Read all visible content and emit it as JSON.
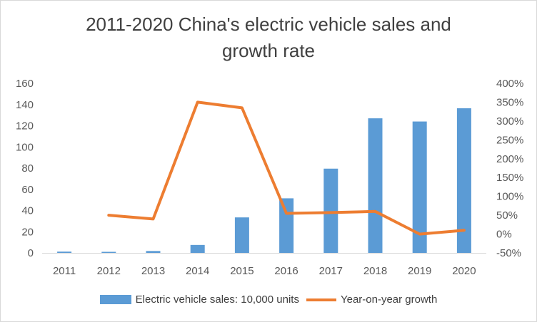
{
  "chart_data": {
    "type": "bar",
    "title_lines": [
      "2011-2020 China's electric vehicle sales and",
      "growth rate"
    ],
    "categories": [
      "2011",
      "2012",
      "2013",
      "2014",
      "2015",
      "2016",
      "2017",
      "2018",
      "2019",
      "2020"
    ],
    "series": [
      {
        "name": "Electric vehicle sales: 10,000 units",
        "type": "bar",
        "axis": "left",
        "color": "#5b9bd5",
        "values": [
          1.2,
          1.0,
          1.8,
          7.5,
          33.5,
          51.5,
          79.5,
          127,
          124,
          136.5
        ]
      },
      {
        "name": "Year-on-year growth",
        "type": "line",
        "axis": "right",
        "color": "#ed7d31",
        "values": [
          null,
          0.5,
          0.4,
          3.5,
          3.35,
          0.55,
          0.57,
          0.6,
          0.0,
          0.1
        ]
      }
    ],
    "y_left": {
      "min": 0,
      "max": 160,
      "step": 20,
      "tick_labels": [
        "0",
        "20",
        "40",
        "60",
        "80",
        "100",
        "120",
        "140",
        "160"
      ]
    },
    "y_right": {
      "min": -0.5,
      "max": 4.0,
      "step": 0.5,
      "tick_labels": [
        "-50%",
        "0%",
        "50%",
        "100%",
        "150%",
        "200%",
        "250%",
        "300%",
        "350%",
        "400%"
      ]
    },
    "grid": false,
    "legend_position": "bottom"
  }
}
